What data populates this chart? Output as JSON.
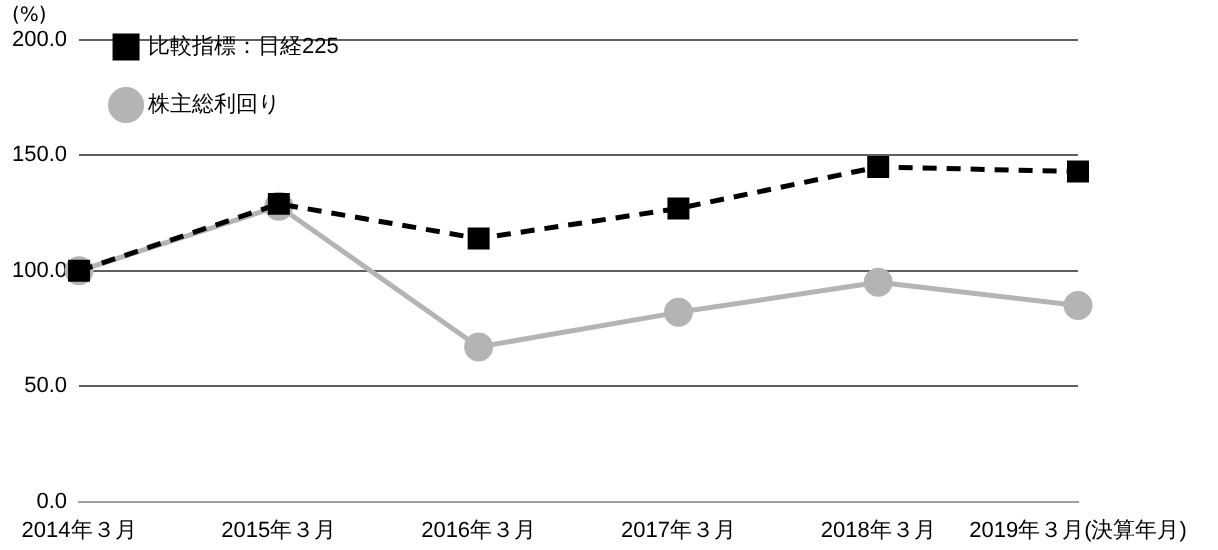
{
  "chart_data": {
    "type": "line",
    "ylabel": "(%)",
    "categories": [
      "2014年３月",
      "2015年３月",
      "2016年３月",
      "2017年３月",
      "2018年３月",
      "2019年３月(決算年月)"
    ],
    "series": [
      {
        "name": "株主総利回り",
        "color": "#b4b4b4",
        "marker": "circle",
        "line_style": "solid",
        "values": [
          100,
          128,
          67,
          82,
          95,
          85
        ]
      },
      {
        "name": "比較指標：日経225",
        "color": "#000000",
        "marker": "square",
        "line_style": "dashed",
        "values": [
          100,
          129,
          114,
          127,
          145,
          143
        ]
      }
    ],
    "ylim": [
      0,
      200
    ],
    "yticks": [
      {
        "value": 0,
        "label": "0.0"
      },
      {
        "value": 50,
        "label": "50.0"
      },
      {
        "value": 100,
        "label": "100.0"
      },
      {
        "value": 150,
        "label": "150.0"
      },
      {
        "value": 200,
        "label": "200.0"
      }
    ],
    "grid": "y",
    "legend": "top left"
  }
}
